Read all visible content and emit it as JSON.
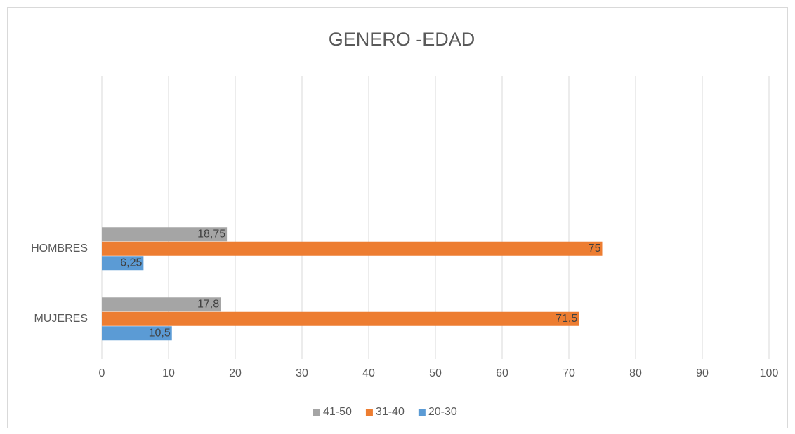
{
  "chart_data": {
    "type": "hbar",
    "title": "GENERO -EDAD",
    "categories": [
      "MUJERES",
      "HOMBRES"
    ],
    "series": [
      {
        "name": "41-50",
        "color": "#a5a5a5",
        "values": [
          17.8,
          18.75
        ],
        "value_labels": [
          "17,8",
          "18,75"
        ]
      },
      {
        "name": "31-40",
        "color": "#ed7d31",
        "values": [
          71.5,
          75
        ],
        "value_labels": [
          "71,5",
          "75"
        ]
      },
      {
        "name": "20-30",
        "color": "#5b9bd5",
        "values": [
          10.5,
          6.25
        ],
        "value_labels": [
          "10,5",
          "6,25"
        ]
      }
    ],
    "xlim": [
      0,
      100
    ],
    "xticks": [
      0,
      10,
      20,
      30,
      40,
      50,
      60,
      70,
      80,
      90,
      100
    ],
    "grid": true,
    "legend": "bottom"
  }
}
